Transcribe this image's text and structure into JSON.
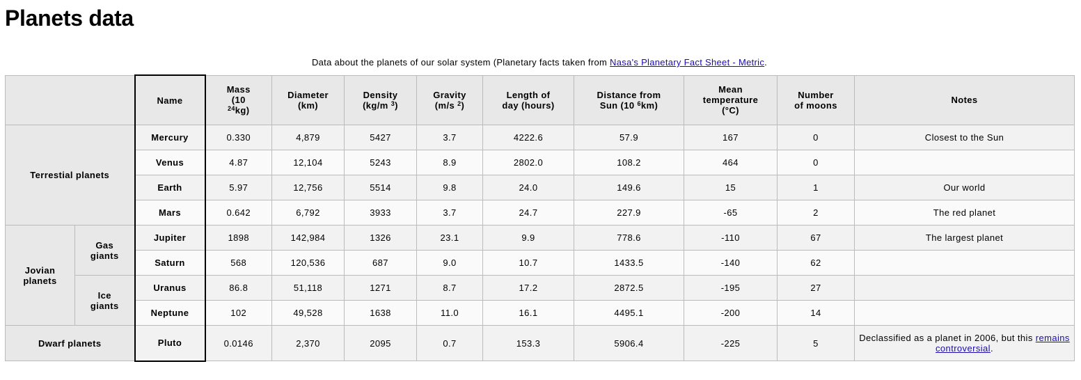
{
  "title": "Planets data",
  "caption": {
    "text": "Data about the planets of our solar system (Planetary facts taken from ",
    "link": "Nasa's Planetary Fact Sheet - Metric",
    "end": "."
  },
  "headers": {
    "name": "Name",
    "mass_a": "Mass",
    "mass_b": "(10",
    "mass_sup": "24",
    "mass_c": "kg)",
    "diameter_a": "Diameter",
    "diameter_b": "(km)",
    "density_a": "Density",
    "density_b": "(kg/m ",
    "density_sup": "3",
    "density_c": ")",
    "gravity_a": "Gravity",
    "gravity_b": "(m/s ",
    "gravity_sup": "2",
    "gravity_c": ")",
    "day_a": "Length of",
    "day_b": "day (hours)",
    "dist_a": "Distance from",
    "dist_b": "Sun (10 ",
    "dist_sup": "6",
    "dist_c": "km)",
    "temp_a": "Mean",
    "temp_b": "temperature",
    "temp_c": "(°C)",
    "moons_a": "Number",
    "moons_b": "of moons",
    "notes": "Notes"
  },
  "groups": {
    "terrestrial": "Terrestial planets",
    "jovian_a": "Jovian",
    "jovian_b": "planets",
    "gas_a": "Gas",
    "gas_b": "giants",
    "ice_a": "Ice",
    "ice_b": "giants",
    "dwarf": "Dwarf planets"
  },
  "rows": [
    {
      "name": "Mercury",
      "mass": "0.330",
      "diameter": "4,879",
      "density": "5427",
      "gravity": "3.7",
      "day": "4222.6",
      "distance": "57.9",
      "temp": "167",
      "moons": "0",
      "notes": "Closest to the Sun"
    },
    {
      "name": "Venus",
      "mass": "4.87",
      "diameter": "12,104",
      "density": "5243",
      "gravity": "8.9",
      "day": "2802.0",
      "distance": "108.2",
      "temp": "464",
      "moons": "0",
      "notes": ""
    },
    {
      "name": "Earth",
      "mass": "5.97",
      "diameter": "12,756",
      "density": "5514",
      "gravity": "9.8",
      "day": "24.0",
      "distance": "149.6",
      "temp": "15",
      "moons": "1",
      "notes": "Our world"
    },
    {
      "name": "Mars",
      "mass": "0.642",
      "diameter": "6,792",
      "density": "3933",
      "gravity": "3.7",
      "day": "24.7",
      "distance": "227.9",
      "temp": "-65",
      "moons": "2",
      "notes": "The red planet"
    },
    {
      "name": "Jupiter",
      "mass": "1898",
      "diameter": "142,984",
      "density": "1326",
      "gravity": "23.1",
      "day": "9.9",
      "distance": "778.6",
      "temp": "-110",
      "moons": "67",
      "notes": "The largest planet"
    },
    {
      "name": "Saturn",
      "mass": "568",
      "diameter": "120,536",
      "density": "687",
      "gravity": "9.0",
      "day": "10.7",
      "distance": "1433.5",
      "temp": "-140",
      "moons": "62",
      "notes": ""
    },
    {
      "name": "Uranus",
      "mass": "86.8",
      "diameter": "51,118",
      "density": "1271",
      "gravity": "8.7",
      "day": "17.2",
      "distance": "2872.5",
      "temp": "-195",
      "moons": "27",
      "notes": ""
    },
    {
      "name": "Neptune",
      "mass": "102",
      "diameter": "49,528",
      "density": "1638",
      "gravity": "11.0",
      "day": "16.1",
      "distance": "4495.1",
      "temp": "-200",
      "moons": "14",
      "notes": ""
    },
    {
      "name": "Pluto",
      "mass": "0.0146",
      "diameter": "2,370",
      "density": "2095",
      "gravity": "0.7",
      "day": "153.3",
      "distance": "5906.4",
      "temp": "-225",
      "moons": "5",
      "notes": "Declassified as a planet in 2006, but this ",
      "notes_link": "remains controversial",
      "notes_end": "."
    }
  ]
}
